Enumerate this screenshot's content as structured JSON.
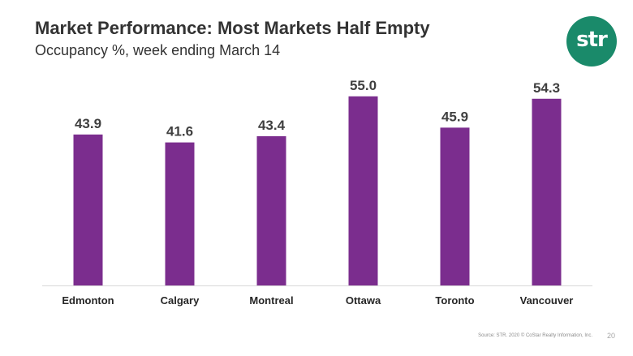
{
  "slide": {
    "title": "Market Performance: Most Markets Half Empty",
    "subtitle": "Occupancy %, week ending March 14",
    "logo_text": "str",
    "footer_source": "Source: STR. 2020 © CoStar Realty Information, Inc.",
    "page_number": "20"
  },
  "colors": {
    "bar": "#7b2d8e",
    "logo": "#1a8a6a",
    "axis": "#d9d9d9"
  },
  "chart_data": {
    "type": "bar",
    "title": "Market Performance: Most Markets Half Empty",
    "subtitle": "Occupancy %, week ending March 14",
    "categories": [
      "Edmonton",
      "Calgary",
      "Montreal",
      "Ottawa",
      "Toronto",
      "Vancouver"
    ],
    "values": [
      43.9,
      41.6,
      43.4,
      55.0,
      45.9,
      54.3
    ],
    "value_labels": [
      "43.9",
      "41.6",
      "43.4",
      "55.0",
      "45.9",
      "54.3"
    ],
    "ylim": [
      0,
      60
    ],
    "grid": false,
    "legend": "none",
    "xlabel": "",
    "ylabel": ""
  }
}
